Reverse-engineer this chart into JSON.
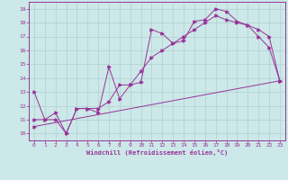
{
  "xlabel": "Windchill (Refroidissement éolien,°C)",
  "xlim": [
    -0.5,
    23.5
  ],
  "ylim": [
    9.5,
    19.5
  ],
  "xticks": [
    0,
    1,
    2,
    3,
    4,
    5,
    6,
    7,
    8,
    9,
    10,
    11,
    12,
    13,
    14,
    15,
    16,
    17,
    18,
    19,
    20,
    21,
    22,
    23
  ],
  "yticks": [
    10,
    11,
    12,
    13,
    14,
    15,
    16,
    17,
    18,
    19
  ],
  "bg_color": "#cce8e8",
  "line_color": "#993399",
  "grid_color": "#b0d0d0",
  "line1_x": [
    0,
    1,
    2,
    3,
    4,
    5,
    6,
    7,
    8,
    9,
    10,
    11,
    12,
    13,
    14,
    15,
    16,
    17,
    18,
    19,
    20,
    21,
    22,
    23
  ],
  "line1_y": [
    13.0,
    11.0,
    11.0,
    10.0,
    11.8,
    11.8,
    11.5,
    14.8,
    12.5,
    13.5,
    13.7,
    17.5,
    17.2,
    16.5,
    16.7,
    18.1,
    18.2,
    19.0,
    18.8,
    18.1,
    17.8,
    17.0,
    16.2,
    13.8
  ],
  "line2_x": [
    0,
    1,
    2,
    3,
    4,
    5,
    6,
    7,
    8,
    9,
    10,
    11,
    12,
    13,
    14,
    15,
    16,
    17,
    18,
    19,
    20,
    21,
    22,
    23
  ],
  "line2_y": [
    11.0,
    11.0,
    11.5,
    10.0,
    11.8,
    11.8,
    11.8,
    12.3,
    13.5,
    13.5,
    14.5,
    15.5,
    16.0,
    16.5,
    17.0,
    17.5,
    18.0,
    18.5,
    18.2,
    18.0,
    17.8,
    17.5,
    17.0,
    13.8
  ],
  "line3_x": [
    0,
    23
  ],
  "line3_y": [
    10.5,
    13.8
  ]
}
